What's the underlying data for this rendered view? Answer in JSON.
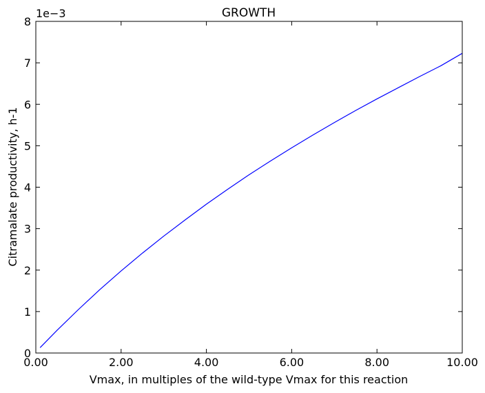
{
  "chart_data": {
    "type": "line",
    "title": "GROWTH",
    "xlabel": "Vmax, in multiples of the wild-type Vmax for this reaction",
    "ylabel": "Citramalate productivity, h-1",
    "y_scale_label": "1e−3",
    "xlim": [
      0,
      10
    ],
    "ylim": [
      0,
      8
    ],
    "y_multiplier": 0.001,
    "xticks": [
      0,
      2,
      4,
      6,
      8,
      10
    ],
    "xtick_labels": [
      "0.00",
      "2.00",
      "4.00",
      "6.00",
      "8.00",
      "10.00"
    ],
    "yticks": [
      0,
      1,
      2,
      3,
      4,
      5,
      6,
      7,
      8
    ],
    "ytick_labels": [
      "0",
      "1",
      "2",
      "3",
      "4",
      "5",
      "6",
      "7",
      "8"
    ],
    "grid": false,
    "series": [
      {
        "color": "#0000ff",
        "x": [
          0.1,
          0.5,
          1.0,
          1.5,
          2.0,
          2.5,
          3.0,
          3.5,
          4.0,
          4.5,
          5.0,
          5.5,
          6.0,
          6.5,
          7.0,
          7.5,
          8.0,
          8.5,
          9.0,
          9.5,
          10.0
        ],
        "y": [
          0.13,
          0.55,
          1.05,
          1.53,
          1.98,
          2.41,
          2.82,
          3.21,
          3.59,
          3.95,
          4.3,
          4.63,
          4.95,
          5.26,
          5.56,
          5.85,
          6.13,
          6.4,
          6.67,
          6.93,
          7.23
        ]
      }
    ]
  }
}
